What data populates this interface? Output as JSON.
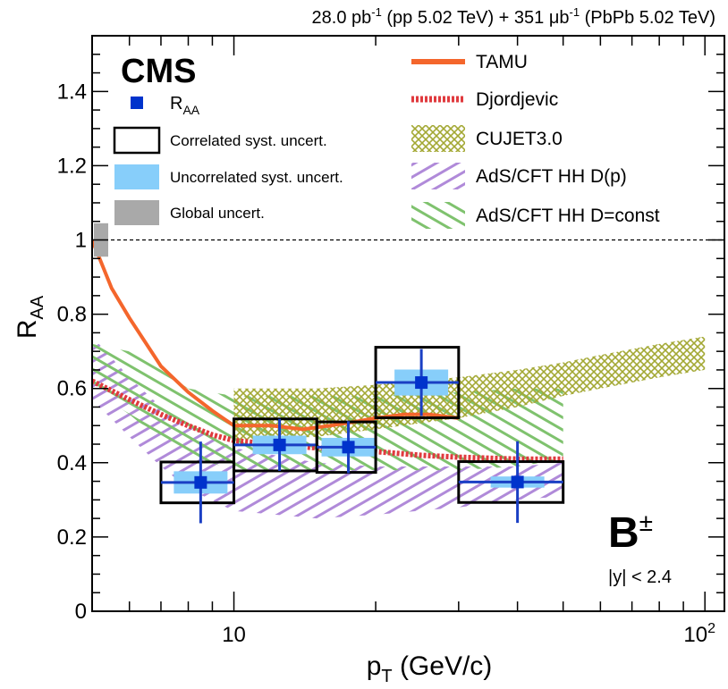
{
  "chart_data": {
    "type": "scatter",
    "header": {
      "pp_lumi": "28.0 pb",
      "pp_sup": "-1",
      "pp_label": " (pp 5.02 TeV) + 351 ",
      "pbpb_unit": "μb",
      "pbpb_sup": "-1",
      "pbpb_label": " (PbPb 5.02 TeV)"
    },
    "experiment": "CMS",
    "particle": "B",
    "particle_sup": "±",
    "rapidity_cut": "|y| < 2.4",
    "xlabel_main": "p",
    "xlabel_sub": "T",
    "xlabel_tail": " (GeV/c)",
    "ylabel_main": "R",
    "ylabel_sub": "AA",
    "xscale": "log",
    "xlim": [
      5,
      110
    ],
    "ylim": [
      0,
      1.55
    ],
    "xticks_labeled": [
      {
        "value": 10,
        "label": "10"
      },
      {
        "value": 100,
        "label": "10",
        "sup": "2"
      }
    ],
    "yticks": [
      {
        "value": 0,
        "label": "0"
      },
      {
        "value": 0.2,
        "label": "0.2"
      },
      {
        "value": 0.4,
        "label": "0.4"
      },
      {
        "value": 0.6,
        "label": "0.6"
      },
      {
        "value": 0.8,
        "label": "0.8"
      },
      {
        "value": 1.0,
        "label": "1"
      },
      {
        "value": 1.2,
        "label": "1.2"
      },
      {
        "value": 1.4,
        "label": "1.4"
      }
    ],
    "reference_line": 1.0,
    "global_uncert": [
      0.955,
      1.045
    ],
    "raa_points": [
      {
        "x": 8.5,
        "xlo": 7,
        "xhi": 10,
        "y": 0.347,
        "stat": 0.11,
        "corr": 0.055,
        "uncorr": 0.03
      },
      {
        "x": 12.5,
        "xlo": 10,
        "xhi": 15,
        "y": 0.448,
        "stat": 0.07,
        "corr": 0.07,
        "uncorr": 0.025
      },
      {
        "x": 17.5,
        "xlo": 15,
        "xhi": 20,
        "y": 0.442,
        "stat": 0.07,
        "corr": 0.068,
        "uncorr": 0.025
      },
      {
        "x": 25,
        "xlo": 20,
        "xhi": 30,
        "y": 0.616,
        "stat": 0.09,
        "corr": 0.095,
        "uncorr": 0.035
      },
      {
        "x": 40,
        "xlo": 30,
        "xhi": 50,
        "y": 0.348,
        "stat": 0.11,
        "corr": 0.055,
        "uncorr": 0.015
      }
    ],
    "models": {
      "tamu": {
        "name": "TAMU",
        "x": [
          5,
          5.5,
          6,
          7,
          8,
          9,
          10,
          12,
          14,
          16,
          18,
          20,
          23,
          26,
          30
        ],
        "y": [
          1.0,
          0.87,
          0.79,
          0.66,
          0.59,
          0.54,
          0.5,
          0.5,
          0.49,
          0.5,
          0.51,
          0.52,
          0.53,
          0.53,
          0.52
        ]
      },
      "djordjevic": {
        "name": "Djordjevic",
        "x": [
          5,
          6,
          7,
          8,
          9,
          10,
          12,
          15,
          20,
          25,
          30,
          40,
          50
        ],
        "y": [
          0.62,
          0.57,
          0.53,
          0.5,
          0.475,
          0.46,
          0.45,
          0.44,
          0.43,
          0.42,
          0.415,
          0.41,
          0.41
        ]
      },
      "cujet": {
        "name": "CUJET3.0",
        "x": [
          10,
          15,
          20,
          30,
          40,
          50,
          60,
          80,
          100
        ],
        "ylo": [
          0.46,
          0.47,
          0.49,
          0.52,
          0.55,
          0.58,
          0.6,
          0.63,
          0.65
        ],
        "yhi": [
          0.6,
          0.6,
          0.61,
          0.63,
          0.65,
          0.67,
          0.69,
          0.72,
          0.74
        ]
      },
      "ads_dp": {
        "name": "AdS/CFT HH D(p)",
        "x": [
          5,
          6,
          7,
          8,
          10,
          15,
          20,
          30,
          40,
          50
        ],
        "ylo": [
          0.57,
          0.47,
          0.39,
          0.33,
          0.27,
          0.25,
          0.26,
          0.28,
          0.3,
          0.31
        ],
        "yhi": [
          0.74,
          0.63,
          0.55,
          0.5,
          0.44,
          0.4,
          0.39,
          0.39,
          0.39,
          0.4
        ]
      },
      "ads_dconst": {
        "name": "AdS/CFT HH D=const",
        "x": [
          5,
          6,
          7,
          8,
          10,
          15,
          20,
          30,
          40,
          50
        ],
        "ylo": [
          0.6,
          0.53,
          0.46,
          0.42,
          0.38,
          0.38,
          0.38,
          0.38,
          0.39,
          0.41
        ],
        "yhi": [
          0.72,
          0.7,
          0.65,
          0.6,
          0.58,
          0.58,
          0.58,
          0.59,
          0.6,
          0.6
        ]
      }
    },
    "legend_left": {
      "raa_label": "R",
      "raa_sub": "AA",
      "corr_label": "Correlated syst. uncert.",
      "uncorr_label": "Uncorrelated syst. uncert.",
      "global_label": "Global uncert."
    },
    "colors": {
      "marker": "#0033cc",
      "marker_err": "#1a3fc4",
      "uncorr": "#87cefa",
      "corr_box": "#000000",
      "global": "#a9a9a9",
      "tamu": "#f4662c",
      "djordjevic": "#e03a3e",
      "cujet": "#a3a834",
      "ads_dp": "#b08ad9",
      "ads_dconst": "#7fc26e"
    }
  }
}
